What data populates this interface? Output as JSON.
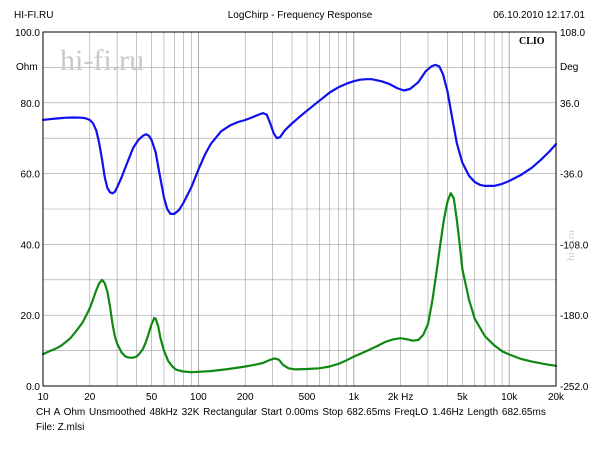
{
  "header": {
    "left": "HI-FI.RU",
    "center": "LogChirp - Frequency Response",
    "right": "06.10.2010 12.17.01"
  },
  "brand": {
    "clio": "CLIO",
    "watermark": "hi-fi.ru",
    "side_watermark": "hi-fi.ru"
  },
  "footer": {
    "params": "CH A   Ohm   Unsmoothed   48kHz   32K   Rectangular   Start 0.00ms     Stop 682.65ms     FreqLO 1.46Hz     Length 682.65ms",
    "file": "File: Z.mlsi"
  },
  "chart_data": {
    "type": "line",
    "title": "LogChirp - Frequency Response",
    "xlabel": "",
    "ylabel": "Ohm",
    "y2label": "Deg",
    "xscale": "log",
    "xlim": [
      10,
      20000
    ],
    "ylim": [
      0,
      100
    ],
    "y2lim": [
      -252,
      108
    ],
    "grid": true,
    "x_tick_labels": [
      {
        "value": 10,
        "label": "10"
      },
      {
        "value": 20,
        "label": "20"
      },
      {
        "value": 50,
        "label": "50"
      },
      {
        "value": 100,
        "label": "100"
      },
      {
        "value": 200,
        "label": "200"
      },
      {
        "value": 500,
        "label": "500"
      },
      {
        "value": 1000,
        "label": "1k"
      },
      {
        "value": 2000,
        "label": "2k Hz"
      },
      {
        "value": 5000,
        "label": "5k"
      },
      {
        "value": 10000,
        "label": "10k"
      },
      {
        "value": 20000,
        "label": "20k"
      }
    ],
    "y_tick_labels": [
      "0.0",
      "20.0",
      "40.0",
      "60.0",
      "80.0",
      "100.0"
    ],
    "y2_tick_labels": [
      "-252.0",
      "-180.0",
      "-108.0",
      "-36.0",
      "36.0",
      "108.0"
    ],
    "colors": {
      "ohm": "#1010ee",
      "deg": "#118811",
      "grid": "#a0a0a0"
    },
    "series": [
      {
        "axis": "y2",
        "points": [
          [
            10,
            18.6
          ],
          [
            11,
            19.3
          ],
          [
            12,
            19.9
          ],
          [
            13,
            20.4
          ],
          [
            14,
            20.8
          ],
          [
            15,
            21.0
          ],
          [
            16,
            21.1
          ],
          [
            17,
            21.0
          ],
          [
            18,
            20.7
          ],
          [
            19,
            20.0
          ],
          [
            20,
            18.5
          ],
          [
            21,
            15.0
          ],
          [
            22,
            8.0
          ],
          [
            23,
            -5.0
          ],
          [
            24,
            -22.0
          ],
          [
            25,
            -40.0
          ],
          [
            26,
            -51.0
          ],
          [
            27,
            -55.0
          ],
          [
            28,
            -56.0
          ],
          [
            29,
            -54.5
          ],
          [
            30,
            -50.0
          ],
          [
            32,
            -40.0
          ],
          [
            35,
            -24.0
          ],
          [
            38,
            -10.0
          ],
          [
            41,
            -2.0
          ],
          [
            44,
            2.5
          ],
          [
            46,
            4.0
          ],
          [
            48,
            2.5
          ],
          [
            50,
            -2.0
          ],
          [
            53,
            -14.0
          ],
          [
            56,
            -35.0
          ],
          [
            60,
            -60.0
          ],
          [
            63,
            -72.0
          ],
          [
            66,
            -77.0
          ],
          [
            70,
            -77.0
          ],
          [
            75,
            -73.0
          ],
          [
            80,
            -66.0
          ],
          [
            90,
            -50.0
          ],
          [
            100,
            -32.0
          ],
          [
            110,
            -17.0
          ],
          [
            120,
            -6.0
          ],
          [
            140,
            7.0
          ],
          [
            160,
            13.0
          ],
          [
            180,
            16.5
          ],
          [
            200,
            18.5
          ],
          [
            220,
            21.0
          ],
          [
            240,
            23.5
          ],
          [
            260,
            25.5
          ],
          [
            275,
            24.0
          ],
          [
            290,
            15.0
          ],
          [
            305,
            5.0
          ],
          [
            320,
            0.0
          ],
          [
            335,
            1.0
          ],
          [
            360,
            8.0
          ],
          [
            400,
            15.0
          ],
          [
            450,
            22.0
          ],
          [
            500,
            28.0
          ],
          [
            600,
            38.0
          ],
          [
            700,
            46.5
          ],
          [
            800,
            52.0
          ],
          [
            900,
            55.5
          ],
          [
            1000,
            58.0
          ],
          [
            1100,
            59.5
          ],
          [
            1200,
            60.0
          ],
          [
            1300,
            60.0
          ],
          [
            1500,
            58.0
          ],
          [
            1700,
            55.0
          ],
          [
            1900,
            51.0
          ],
          [
            2100,
            48.5
          ],
          [
            2300,
            50.0
          ],
          [
            2600,
            57.0
          ],
          [
            2900,
            68.0
          ],
          [
            3150,
            73.0
          ],
          [
            3350,
            74.5
          ],
          [
            3550,
            73.0
          ],
          [
            3750,
            65.0
          ],
          [
            4000,
            48.0
          ],
          [
            4300,
            20.0
          ],
          [
            4600,
            -5.0
          ],
          [
            5000,
            -25.0
          ],
          [
            5500,
            -38.0
          ],
          [
            6000,
            -44.5
          ],
          [
            6500,
            -47.5
          ],
          [
            7000,
            -48.5
          ],
          [
            8000,
            -48.5
          ],
          [
            9000,
            -46.5
          ],
          [
            10000,
            -43.5
          ],
          [
            12000,
            -37.0
          ],
          [
            14000,
            -30.0
          ],
          [
            16000,
            -22.0
          ],
          [
            18000,
            -14.0
          ],
          [
            20000,
            -6.0
          ]
        ]
      },
      {
        "axis": "y",
        "points": [
          [
            10,
            9.0
          ],
          [
            11,
            9.8
          ],
          [
            12,
            10.5
          ],
          [
            13,
            11.3
          ],
          [
            14,
            12.4
          ],
          [
            15,
            13.5
          ],
          [
            16,
            15.0
          ],
          [
            17,
            16.5
          ],
          [
            18,
            18.0
          ],
          [
            19,
            20.0
          ],
          [
            20,
            22.0
          ],
          [
            21,
            24.5
          ],
          [
            22,
            27.0
          ],
          [
            23,
            29.0
          ],
          [
            24,
            30.0
          ],
          [
            25,
            29.0
          ],
          [
            26,
            26.5
          ],
          [
            27,
            22.5
          ],
          [
            28,
            17.5
          ],
          [
            29,
            14.0
          ],
          [
            30,
            12.0
          ],
          [
            32,
            9.5
          ],
          [
            34,
            8.3
          ],
          [
            36,
            8.0
          ],
          [
            38,
            8.0
          ],
          [
            40,
            8.3
          ],
          [
            42,
            9.3
          ],
          [
            44,
            10.5
          ],
          [
            46,
            12.5
          ],
          [
            48,
            15.0
          ],
          [
            50,
            17.5
          ],
          [
            52,
            19.2
          ],
          [
            53,
            19.0
          ],
          [
            55,
            17.0
          ],
          [
            57,
            13.5
          ],
          [
            60,
            10.0
          ],
          [
            64,
            7.0
          ],
          [
            68,
            5.5
          ],
          [
            72,
            4.6
          ],
          [
            80,
            4.1
          ],
          [
            90,
            3.9
          ],
          [
            100,
            4.0
          ],
          [
            120,
            4.2
          ],
          [
            150,
            4.7
          ],
          [
            180,
            5.2
          ],
          [
            200,
            5.5
          ],
          [
            230,
            6.0
          ],
          [
            260,
            6.5
          ],
          [
            290,
            7.4
          ],
          [
            310,
            7.8
          ],
          [
            330,
            7.4
          ],
          [
            350,
            6.0
          ],
          [
            380,
            5.0
          ],
          [
            420,
            4.7
          ],
          [
            500,
            4.8
          ],
          [
            600,
            5.0
          ],
          [
            700,
            5.5
          ],
          [
            800,
            6.3
          ],
          [
            900,
            7.3
          ],
          [
            1000,
            8.3
          ],
          [
            1200,
            9.8
          ],
          [
            1400,
            11.2
          ],
          [
            1600,
            12.5
          ],
          [
            1800,
            13.2
          ],
          [
            2000,
            13.5
          ],
          [
            2200,
            13.2
          ],
          [
            2400,
            12.8
          ],
          [
            2600,
            13.0
          ],
          [
            2800,
            14.5
          ],
          [
            3000,
            17.5
          ],
          [
            3200,
            24.0
          ],
          [
            3400,
            32.0
          ],
          [
            3600,
            40.0
          ],
          [
            3800,
            47.0
          ],
          [
            4000,
            52.0
          ],
          [
            4200,
            54.5
          ],
          [
            4400,
            53.0
          ],
          [
            4600,
            47.0
          ],
          [
            4800,
            40.0
          ],
          [
            5000,
            33.0
          ],
          [
            5500,
            24.5
          ],
          [
            6000,
            19.0
          ],
          [
            7000,
            14.0
          ],
          [
            8000,
            11.5
          ],
          [
            9000,
            9.8
          ],
          [
            10000,
            8.9
          ],
          [
            12000,
            7.6
          ],
          [
            14000,
            6.9
          ],
          [
            16000,
            6.4
          ],
          [
            18000,
            6.0
          ],
          [
            20000,
            5.7
          ]
        ]
      }
    ]
  }
}
